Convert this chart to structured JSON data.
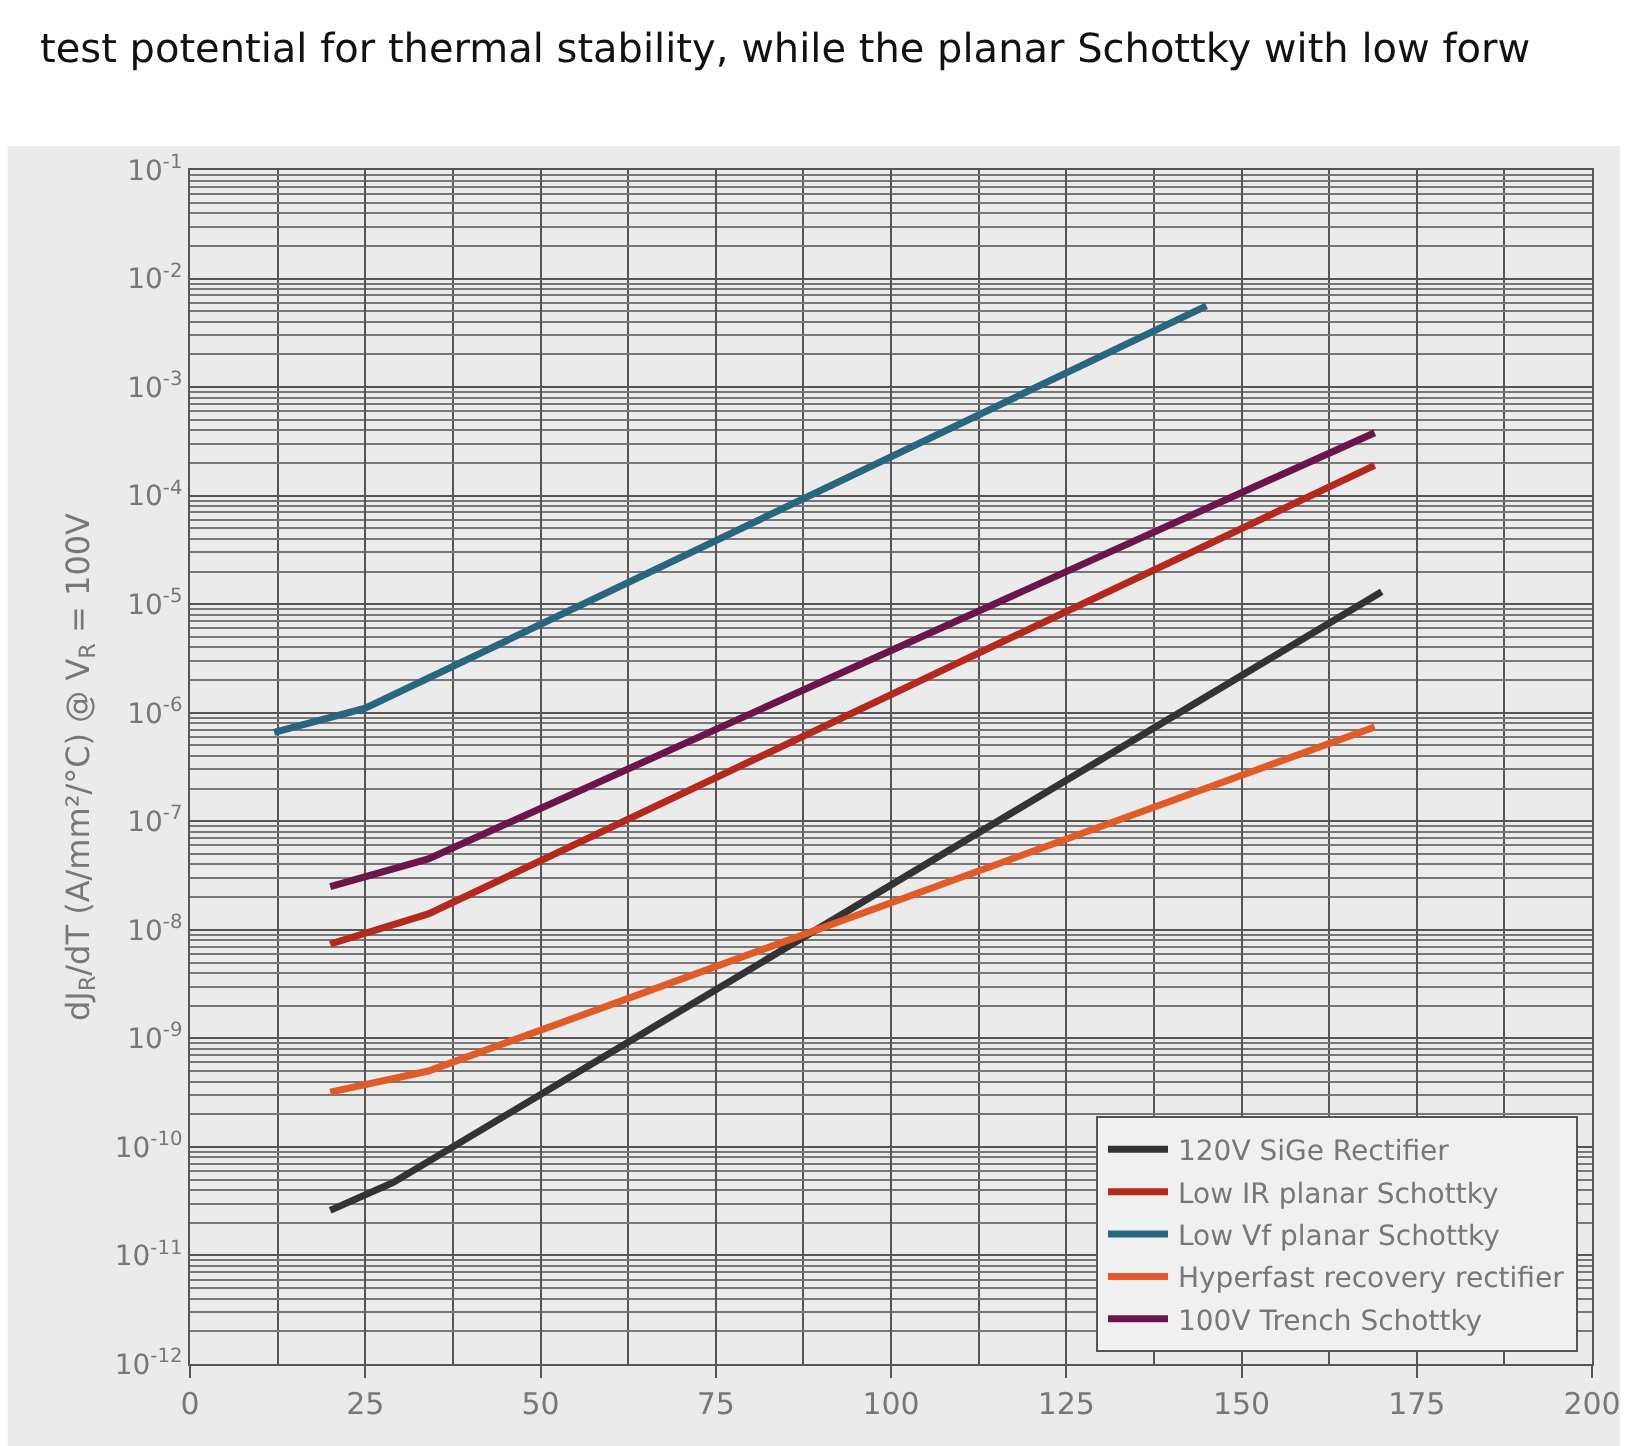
{
  "chart_data": {
    "type": "line",
    "ylabel": "dJ$_{R}$/dT (A/mm²/°C) @ V$_{R}$ = 100V",
    "annotations": [
      "test potential for thermal stability, while the planar Schottky with low forw"
    ],
    "log": "y",
    "grid": true,
    "legend": "bottom right",
    "line_style": "solid",
    "marker": "none",
    "xlim": [
      0,
      200
    ],
    "xticks": [
      0,
      25,
      50,
      75,
      100,
      125,
      150,
      175,
      200
    ],
    "ylim": [
      1e-12,
      0.1
    ],
    "yticks": [
      {
        "value": 1e-12,
        "label": "10$^{-12}$"
      },
      {
        "value": 1e-11,
        "label": "10$^{-11}$"
      },
      {
        "value": 1e-10,
        "label": "10$^{-10}$"
      },
      {
        "value": 1e-09,
        "label": "10$^{-9}$"
      },
      {
        "value": 1e-08,
        "label": "10$^{-8}$"
      },
      {
        "value": 1e-07,
        "label": "10$^{-7}$"
      },
      {
        "value": 1e-06,
        "label": "10$^{-6}$"
      },
      {
        "value": 1e-05,
        "label": "10$^{-5}$"
      },
      {
        "value": 0.0001,
        "label": "10$^{-4}$"
      },
      {
        "value": 0.001,
        "label": "10$^{-3}$"
      },
      {
        "value": 0.01,
        "label": "10$^{-2}$"
      },
      {
        "value": 0.1,
        "label": "10$^{-1}$"
      }
    ],
    "series": [
      {
        "name": "120V SiGe Rectifier",
        "color": "#333333",
        "x": [
          20,
          29,
          170
        ],
        "values": [
          2.6e-11,
          4.7e-11,
          1.3e-05
        ]
      },
      {
        "name": "Low IR planar Schottky",
        "color": "#b5281e",
        "x": [
          20,
          34,
          169
        ],
        "values": [
          7.4e-09,
          1.4e-08,
          0.00019
        ]
      },
      {
        "name": "Low Vf planar Schottky",
        "color": "#286680",
        "x": [
          12,
          25,
          145
        ],
        "values": [
          6.6e-07,
          1.1e-06,
          0.0056
        ]
      },
      {
        "name": "Hyperfast recovery rectifier",
        "color": "#e25a27",
        "x": [
          20,
          34,
          169
        ],
        "values": [
          3.2e-10,
          5e-10,
          7.4e-07
        ]
      },
      {
        "name": "100V Trench Schottky",
        "color": "#6b1548",
        "x": [
          20,
          34,
          169
        ],
        "values": [
          2.5e-08,
          4.5e-08,
          0.00038
        ]
      }
    ]
  }
}
